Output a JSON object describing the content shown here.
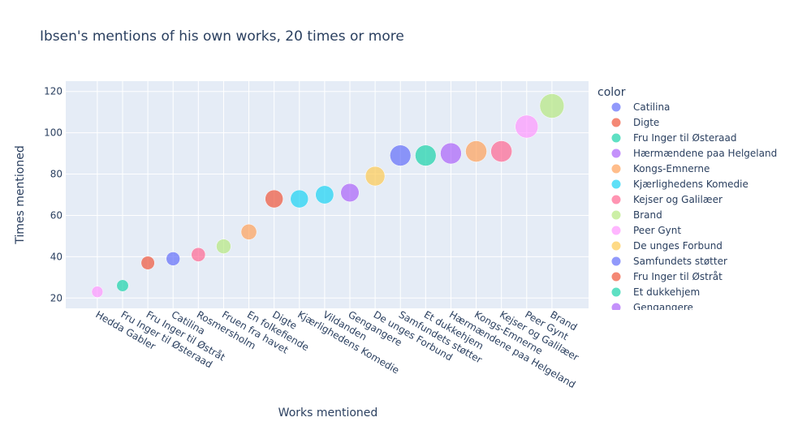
{
  "chart_data": {
    "type": "scatter",
    "title": "Ibsen's mentions of his own works, 20 times or more",
    "xlabel": "Works mentioned",
    "ylabel": "Times mentioned",
    "ylim": [
      15,
      125
    ],
    "yticks": [
      20,
      40,
      60,
      80,
      100,
      120
    ],
    "grid": true,
    "legend": {
      "title": "color",
      "placement": "right"
    },
    "points": [
      {
        "x": "Hedda Gabler",
        "y": 23,
        "color": "#FF97FF"
      },
      {
        "x": "Fru Inger til Østeraad",
        "y": 26,
        "color": "#19D3A9"
      },
      {
        "x": "Fru Inger til Østråt",
        "y": 37,
        "color": "#EF553B"
      },
      {
        "x": "Catilina",
        "y": 39,
        "color": "#636EFA"
      },
      {
        "x": "Rosmersholm",
        "y": 41,
        "color": "#FF6692"
      },
      {
        "x": "Fruen fra havet",
        "y": 45,
        "color": "#B6E880"
      },
      {
        "x": "En folkefiende",
        "y": 52,
        "color": "#FFA15A"
      },
      {
        "x": "Digte",
        "y": 68,
        "color": "#EF553B"
      },
      {
        "x": "Kjærlighedens Komedie",
        "y": 68,
        "color": "#19D3F3"
      },
      {
        "x": "Vildanden",
        "y": 70,
        "color": "#19D3F3"
      },
      {
        "x": "Gengangere",
        "y": 71,
        "color": "#AB63FA"
      },
      {
        "x": "De unges Forbund",
        "y": 79,
        "color": "#FECB52"
      },
      {
        "x": "Samfundets støtter",
        "y": 89,
        "color": "#636EFA"
      },
      {
        "x": "Et dukkehjem",
        "y": 89,
        "color": "#19D3A9"
      },
      {
        "x": "Hærmændene paa Helgeland",
        "y": 90,
        "color": "#AB63FA"
      },
      {
        "x": "Kongs-Emnerne",
        "y": 91,
        "color": "#FFA15A"
      },
      {
        "x": "Kejser og Galilæer",
        "y": 91,
        "color": "#FF6692"
      },
      {
        "x": "Peer Gynt",
        "y": 103,
        "color": "#FF97FF"
      },
      {
        "x": "Brand",
        "y": 113,
        "color": "#B6E880"
      }
    ],
    "legend_items": [
      {
        "label": "Catilina",
        "color": "#636EFA"
      },
      {
        "label": "Digte",
        "color": "#EF553B"
      },
      {
        "label": "Fru Inger til Østeraad",
        "color": "#19D3A9"
      },
      {
        "label": "Hærmændene paa Helgeland",
        "color": "#AB63FA"
      },
      {
        "label": "Kongs-Emnerne",
        "color": "#FFA15A"
      },
      {
        "label": "Kjærlighedens Komedie",
        "color": "#19D3F3"
      },
      {
        "label": "Kejser og Galilæer",
        "color": "#FF6692"
      },
      {
        "label": "Brand",
        "color": "#B6E880"
      },
      {
        "label": "Peer Gynt",
        "color": "#FF97FF"
      },
      {
        "label": "De unges Forbund",
        "color": "#FECB52"
      },
      {
        "label": "Samfundets støtter",
        "color": "#636EFA"
      },
      {
        "label": "Fru Inger til Østråt",
        "color": "#EF553B"
      },
      {
        "label": "Et dukkehjem",
        "color": "#19D3A9"
      },
      {
        "label": "Gengangere",
        "color": "#AB63FA"
      }
    ]
  }
}
